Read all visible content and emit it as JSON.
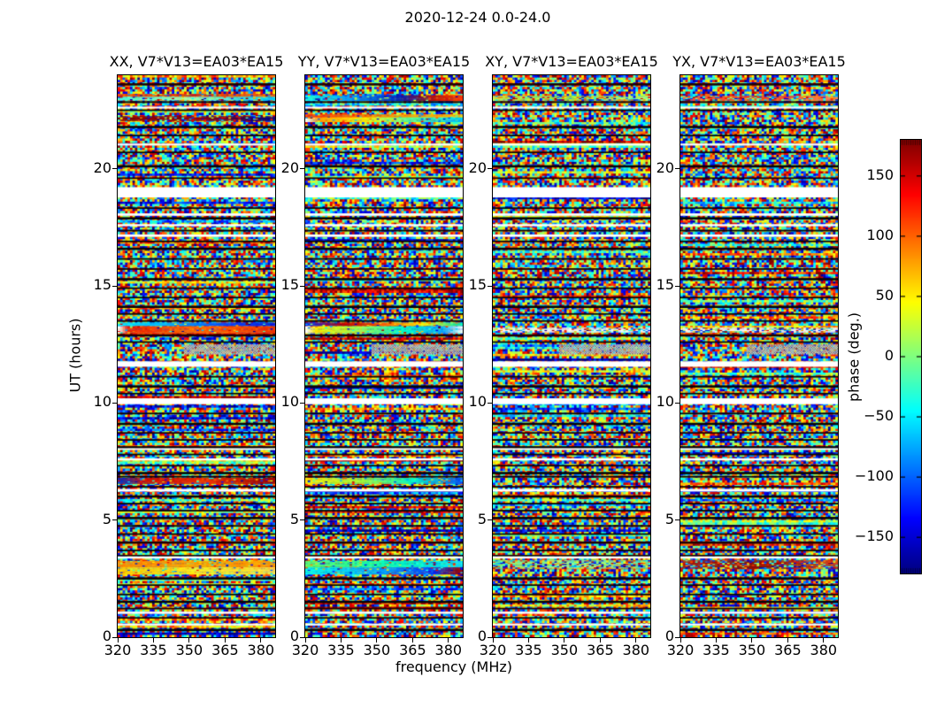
{
  "figure_title": "2020-12-24 0.0-24.0",
  "chart_data": {
    "type": "heatmap",
    "title": "2020-12-24 0.0-24.0",
    "panels": [
      {
        "id": "XX",
        "title": "XX, V7*V13=EA03*EA15"
      },
      {
        "id": "YY",
        "title": "YY, V7*V13=EA03*EA15"
      },
      {
        "id": "XY",
        "title": "XY, V7*V13=EA03*EA15"
      },
      {
        "id": "YX",
        "title": "YX, V7*V13=EA03*EA15"
      }
    ],
    "x_axis": {
      "label": "frequency (MHz)",
      "range": [
        320,
        386
      ],
      "ticks": [
        320,
        335,
        350,
        365,
        380
      ]
    },
    "y_axis": {
      "label": "UT (hours)",
      "range": [
        0,
        24
      ],
      "ticks": [
        0,
        5,
        10,
        15,
        20
      ]
    },
    "colorbar": {
      "label": "phase (deg.)",
      "range": [
        -180,
        180
      ],
      "ticks": [
        150,
        100,
        50,
        0,
        -50,
        -100,
        -150
      ],
      "colormap": "jet"
    },
    "features": {
      "white_gaps_ut": [
        [
          22.58,
          22.66
        ],
        [
          21.0,
          21.08
        ],
        [
          18.78,
          19.22
        ],
        [
          18.0,
          18.1
        ],
        [
          17.55,
          17.64
        ],
        [
          17.1,
          17.2
        ],
        [
          11.55,
          11.78
        ],
        [
          9.95,
          10.2
        ],
        [
          8.0,
          8.07
        ],
        [
          7.55,
          7.64
        ],
        [
          6.22,
          6.33
        ],
        [
          3.36,
          3.45
        ],
        [
          1.0,
          1.09
        ],
        [
          0.5,
          0.58
        ]
      ],
      "dark_lines_ut": [
        23.62,
        22.85,
        22.5,
        21.8,
        21.42,
        20.7,
        20.12,
        19.6,
        18.32,
        17.9,
        17.36,
        16.9,
        16.6,
        16.15,
        15.72,
        15.3,
        14.9,
        14.5,
        14.12,
        13.8,
        13.5,
        12.9,
        12.6,
        11.12,
        10.72,
        10.4,
        9.55,
        9.12,
        8.72,
        8.42,
        8.12,
        7.8,
        7.32,
        7.02,
        6.85,
        6.42,
        6.02,
        5.7,
        5.4,
        5.1,
        4.75,
        4.4,
        4.05,
        3.7,
        3.48,
        2.52,
        2.22,
        1.82,
        1.52,
        1.22,
        0.82,
        0.32
      ],
      "dither_region": {
        "ut": [
          12.1,
          12.5
        ],
        "freq_frac": [
          0.42,
          1.0
        ]
      },
      "bands": {
        "XX": [
          {
            "ut": [
              23.08,
              23.2
            ],
            "stops": [
              [
                0,
                "#ff5500"
              ],
              [
                0.5,
                "#dd3300"
              ],
              [
                1,
                "#ff7700"
              ]
            ],
            "jitter": 0.25
          },
          {
            "ut": [
              22.93,
              23.08
            ],
            "stops": [
              [
                0,
                "#44ffdd"
              ],
              [
                0.45,
                "#aaffaa"
              ],
              [
                1,
                "#00ccff"
              ]
            ],
            "jitter": 0.2
          },
          {
            "ut": [
              22.05,
              22.25
            ],
            "stops": [
              [
                0,
                "#770000"
              ],
              [
                0.5,
                "#990000"
              ],
              [
                1,
                "#000077"
              ]
            ],
            "jitter": 0.3
          },
          {
            "ut": [
              13.3,
              13.44
            ],
            "stops": [
              [
                0,
                "#00eeff"
              ],
              [
                0.35,
                "#00aaff"
              ],
              [
                0.7,
                "#0044ff"
              ],
              [
                1,
                "#0022dd"
              ]
            ],
            "jitter": 0.08
          },
          {
            "ut": [
              12.98,
              13.28
            ],
            "stops": [
              [
                0,
                "#ffffff"
              ],
              [
                0.06,
                "#ee2200"
              ],
              [
                0.45,
                "#ff6600"
              ],
              [
                0.75,
                "#ff5500"
              ],
              [
                1,
                "#ee3300"
              ]
            ],
            "jitter": 0.1
          },
          {
            "ut": [
              6.55,
              6.8
            ],
            "stops": [
              [
                0,
                "#0033cc"
              ],
              [
                0.18,
                "#cc1100"
              ],
              [
                0.55,
                "#ee3300"
              ],
              [
                1,
                "#990000"
              ]
            ],
            "jitter": 0.12
          },
          {
            "ut": [
              2.98,
              3.26
            ],
            "stops": [
              [
                0,
                "#ff8800"
              ],
              [
                0.5,
                "#ffaa00"
              ],
              [
                1,
                "#ff9900"
              ]
            ],
            "jitter": 0.1
          },
          {
            "ut": [
              2.7,
              2.98
            ],
            "stops": [
              [
                0,
                "#ffcc00"
              ],
              [
                0.5,
                "#ffee22"
              ],
              [
                1,
                "#ffdd44"
              ]
            ],
            "jitter": 0.1
          }
        ],
        "YY": [
          {
            "ut": [
              22.93,
              23.15
            ],
            "stops": [
              [
                0,
                "#00ffee"
              ],
              [
                0.3,
                "#0099ff"
              ],
              [
                0.6,
                "#0022bb"
              ],
              [
                0.82,
                "#bb1100"
              ],
              [
                1,
                "#ff3300"
              ]
            ],
            "jitter": 0.12
          },
          {
            "ut": [
              22.2,
              22.33
            ],
            "stops": [
              [
                0,
                "#ff3300"
              ],
              [
                0.5,
                "#ff8800"
              ],
              [
                1,
                "#ffcc00"
              ]
            ],
            "jitter": 0.15
          },
          {
            "ut": [
              22.03,
              22.2
            ],
            "stops": [
              [
                0,
                "#ffffff"
              ],
              [
                0.08,
                "#ff9900"
              ],
              [
                0.38,
                "#ffee00"
              ],
              [
                0.68,
                "#55ff99"
              ],
              [
                1,
                "#00ccff"
              ]
            ],
            "jitter": 0.12
          },
          {
            "ut": [
              13.3,
              13.44
            ],
            "stops": [
              [
                0,
                "#0033ff"
              ],
              [
                0.25,
                "#bb0000"
              ],
              [
                0.5,
                "#ff6600"
              ],
              [
                0.75,
                "#ffee00"
              ],
              [
                1,
                "#00eebb"
              ]
            ],
            "jitter": 0.1
          },
          {
            "ut": [
              12.98,
              13.28
            ],
            "stops": [
              [
                0,
                "#ffffff"
              ],
              [
                0.06,
                "#ffee00"
              ],
              [
                0.35,
                "#99ff55"
              ],
              [
                0.62,
                "#00ffcc"
              ],
              [
                0.88,
                "#00aaff"
              ],
              [
                1,
                "#eeffff"
              ]
            ],
            "jitter": 0.1
          },
          {
            "ut": [
              6.55,
              6.8
            ],
            "stops": [
              [
                0,
                "#ffee00"
              ],
              [
                0.38,
                "#99ff44"
              ],
              [
                0.68,
                "#00ffcc"
              ],
              [
                1,
                "#0055ff"
              ]
            ],
            "jitter": 0.12
          },
          {
            "ut": [
              2.98,
              3.26
            ],
            "stops": [
              [
                0,
                "#66ff66"
              ],
              [
                0.55,
                "#00ffbb"
              ],
              [
                1,
                "#00ddff"
              ]
            ],
            "jitter": 0.1
          },
          {
            "ut": [
              2.7,
              2.98
            ],
            "stops": [
              [
                0,
                "#00ffee"
              ],
              [
                0.45,
                "#00aaff"
              ],
              [
                0.8,
                "#0044ff"
              ],
              [
                1,
                "#990000"
              ]
            ],
            "jitter": 0.15
          }
        ],
        "XY": [
          {
            "ut": [
              22.95,
              23.12
            ],
            "stops": [
              [
                0,
                "#bbee55"
              ],
              [
                0.5,
                "#99dd44"
              ],
              [
                1,
                "#ccff77"
              ]
            ],
            "jitter": 0.5
          },
          {
            "ut": [
              13.05,
              13.22
            ],
            "stops": [
              [
                0,
                "#ffffff"
              ],
              [
                0.5,
                "#f2f2f2"
              ],
              [
                1,
                "#ffffff"
              ]
            ],
            "jitter": 0.45
          },
          {
            "ut": [
              2.95,
              3.28
            ],
            "stops": [
              [
                0,
                "#88ee77"
              ],
              [
                0.5,
                "#aaff88"
              ],
              [
                1,
                "#77dd88"
              ]
            ],
            "jitter": 0.55
          }
        ],
        "YX": [
          {
            "ut": [
              22.95,
              23.12
            ],
            "stops": [
              [
                0,
                "#ff6644"
              ],
              [
                0.5,
                "#ee4422"
              ],
              [
                1,
                "#ff8855"
              ]
            ],
            "jitter": 0.5
          },
          {
            "ut": [
              13.05,
              13.22
            ],
            "stops": [
              [
                0,
                "#ffffff"
              ],
              [
                0.5,
                "#f5f0ee"
              ],
              [
                1,
                "#ffffff"
              ]
            ],
            "jitter": 0.45
          },
          {
            "ut": [
              2.95,
              3.28
            ],
            "stops": [
              [
                0,
                "#aa2211"
              ],
              [
                0.5,
                "#881100"
              ],
              [
                1,
                "#cc4422"
              ]
            ],
            "jitter": 0.5
          }
        ]
      }
    }
  }
}
